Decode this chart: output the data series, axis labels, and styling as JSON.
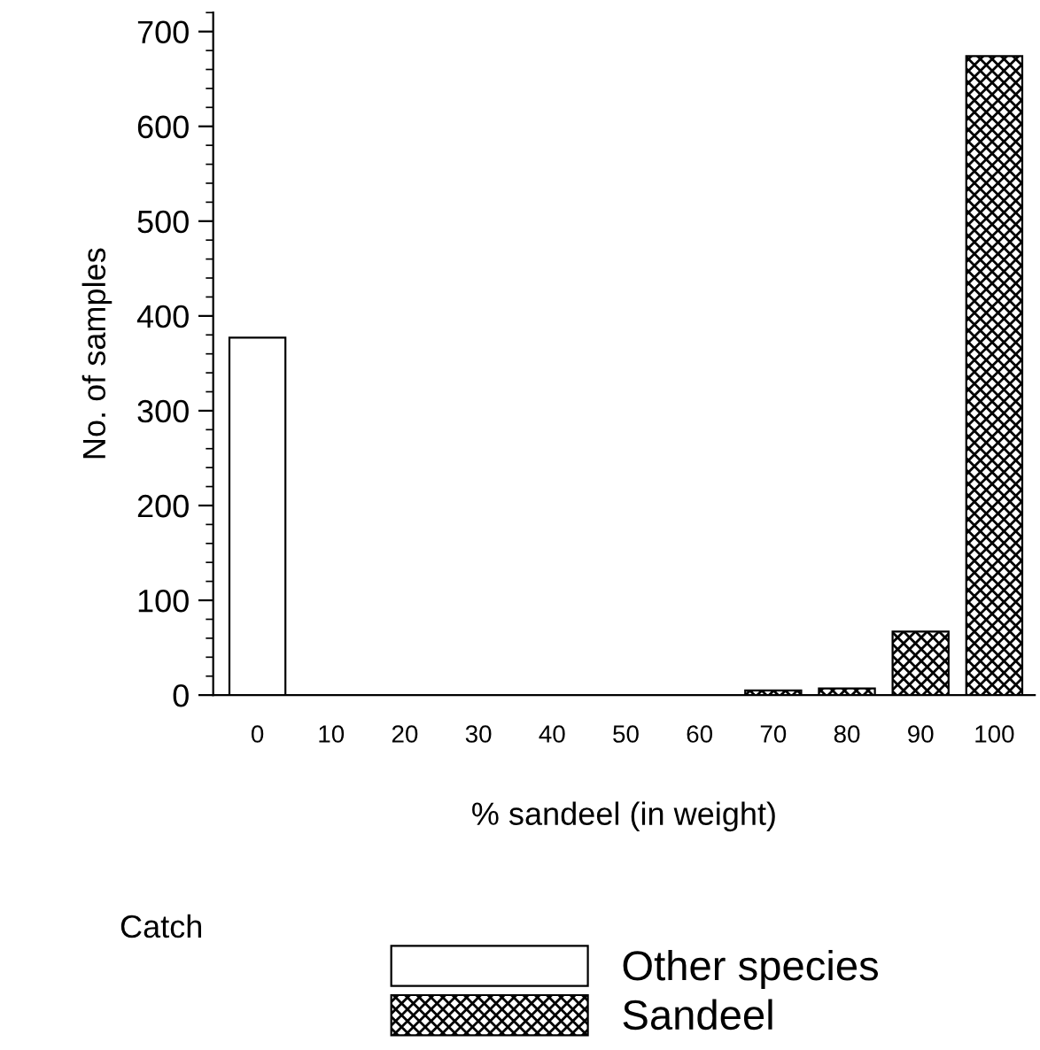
{
  "chart_data": {
    "type": "bar",
    "categories": [
      "0",
      "10",
      "20",
      "30",
      "40",
      "50",
      "60",
      "70",
      "80",
      "90",
      "100"
    ],
    "series": [
      {
        "name": "Other species",
        "color": "#ffffff",
        "values": [
          377,
          null,
          null,
          null,
          null,
          null,
          null,
          null,
          null,
          null,
          null
        ]
      },
      {
        "name": "Sandeel",
        "color": "#000000",
        "values": [
          null,
          null,
          null,
          null,
          null,
          null,
          null,
          5,
          7,
          67,
          674
        ]
      }
    ],
    "xlabel": "% sandeel (in weight)",
    "ylabel": "No. of samples",
    "legend_title": "Catch",
    "ylim": [
      0,
      720
    ],
    "yticks": [
      0,
      100,
      200,
      300,
      400,
      500,
      600,
      700
    ],
    "grid": false,
    "legend": "bottom"
  }
}
